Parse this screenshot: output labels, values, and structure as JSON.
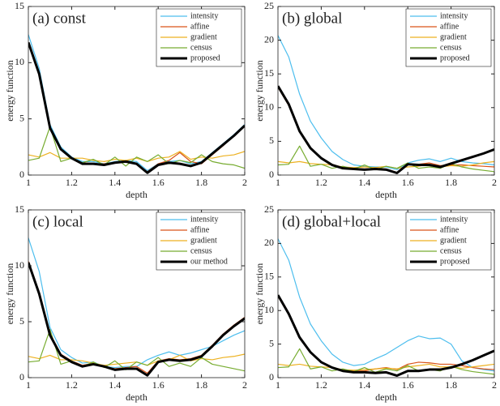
{
  "chart_data": [
    {
      "type": "line",
      "title": "(a) const",
      "xlabel": "depth",
      "ylabel": "energy function",
      "x": [
        1,
        1.05,
        1.1,
        1.15,
        1.2,
        1.25,
        1.3,
        1.35,
        1.4,
        1.45,
        1.5,
        1.55,
        1.6,
        1.65,
        1.7,
        1.75,
        1.8,
        1.85,
        1.9,
        1.95,
        2
      ],
      "xlim": [
        1,
        2
      ],
      "xticks": [
        1,
        1.2,
        1.4,
        1.6,
        1.8,
        2
      ],
      "ylim": [
        0,
        15
      ],
      "yticks": [
        0,
        5,
        10,
        15
      ],
      "legend": "upper right",
      "series": [
        {
          "name": "intensity",
          "color": "#4dbeee",
          "linewidth": 1.2,
          "values": [
            12.5,
            9.5,
            4.5,
            2.5,
            1.6,
            1.2,
            1.2,
            1.0,
            1.2,
            1.3,
            1.2,
            0.4,
            1.0,
            1.2,
            1.3,
            1.0,
            1.2,
            2.0,
            2.8,
            3.6,
            4.5
          ]
        },
        {
          "name": "affine",
          "color": "#d95319",
          "linewidth": 1.2,
          "values": [
            11.7,
            8.9,
            4.1,
            2.3,
            1.5,
            1.1,
            1.0,
            1.0,
            1.1,
            1.3,
            1.0,
            0.3,
            1.0,
            1.3,
            2.0,
            1.2,
            1.0,
            1.8,
            2.6,
            3.5,
            4.3
          ]
        },
        {
          "name": "gradient",
          "color": "#edb120",
          "linewidth": 1.2,
          "values": [
            1.8,
            1.6,
            2.0,
            1.5,
            1.5,
            1.5,
            1.3,
            1.2,
            1.4,
            1.3,
            1.5,
            1.2,
            1.5,
            1.6,
            2.1,
            1.4,
            1.6,
            1.5,
            1.7,
            1.8,
            2.1
          ]
        },
        {
          "name": "census",
          "color": "#77ac30",
          "linewidth": 1.2,
          "values": [
            1.3,
            1.5,
            4.3,
            1.2,
            1.5,
            1.1,
            1.4,
            0.9,
            1.6,
            0.8,
            1.6,
            1.2,
            1.8,
            1.0,
            1.3,
            1.1,
            1.8,
            1.2,
            1.0,
            0.9,
            0.6
          ]
        },
        {
          "name": "proposed",
          "color": "#000000",
          "linewidth": 3,
          "values": [
            11.8,
            9.0,
            4.2,
            2.3,
            1.5,
            1.0,
            1.0,
            0.9,
            1.1,
            1.2,
            1.0,
            0.2,
            0.9,
            1.1,
            1.0,
            0.8,
            1.1,
            1.9,
            2.7,
            3.5,
            4.4
          ]
        }
      ]
    },
    {
      "type": "line",
      "title": "(b) global",
      "xlabel": "depth",
      "ylabel": "energy function",
      "x": [
        1,
        1.05,
        1.1,
        1.15,
        1.2,
        1.25,
        1.3,
        1.35,
        1.4,
        1.45,
        1.5,
        1.55,
        1.6,
        1.65,
        1.7,
        1.75,
        1.8,
        1.85,
        1.9,
        1.95,
        2
      ],
      "xlim": [
        1,
        2
      ],
      "xticks": [
        1,
        1.2,
        1.4,
        1.6,
        1.8,
        2
      ],
      "ylim": [
        0,
        25
      ],
      "yticks": [
        0,
        5,
        10,
        15,
        20,
        25
      ],
      "legend": "upper right",
      "series": [
        {
          "name": "intensity",
          "color": "#4dbeee",
          "linewidth": 1.2,
          "values": [
            20.7,
            17.5,
            12,
            8,
            5.5,
            3.5,
            2.3,
            1.5,
            1.3,
            1.2,
            1.2,
            0.8,
            1.8,
            2.2,
            2.4,
            2.0,
            2.5,
            2.0,
            1.8,
            1.7,
            1.5
          ]
        },
        {
          "name": "affine",
          "color": "#d95319",
          "linewidth": 1.2,
          "values": [
            13.0,
            10.3,
            6.4,
            4.0,
            2.5,
            1.6,
            1.1,
            1.0,
            0.9,
            1.0,
            0.9,
            0.4,
            1.5,
            1.6,
            1.8,
            1.4,
            1.5,
            1.5,
            1.4,
            1.3,
            1.2
          ]
        },
        {
          "name": "gradient",
          "color": "#edb120",
          "linewidth": 1.2,
          "values": [
            2.0,
            1.8,
            2.0,
            1.7,
            1.6,
            1.5,
            1.2,
            1.1,
            1.2,
            1.1,
            1.3,
            1.0,
            1.2,
            1.3,
            1.6,
            1.2,
            1.4,
            1.3,
            1.5,
            1.8,
            2.0
          ]
        },
        {
          "name": "census",
          "color": "#77ac30",
          "linewidth": 1.2,
          "values": [
            1.5,
            1.6,
            4.3,
            1.3,
            1.6,
            1.0,
            1.3,
            0.9,
            1.5,
            0.8,
            1.3,
            1.0,
            1.8,
            1.0,
            1.2,
            1.0,
            1.7,
            1.2,
            0.9,
            0.7,
            0.5
          ]
        },
        {
          "name": "proposed",
          "color": "#000000",
          "linewidth": 3,
          "values": [
            13.2,
            10.5,
            6.5,
            4.0,
            2.5,
            1.5,
            1.0,
            0.9,
            0.8,
            0.9,
            0.8,
            0.3,
            1.6,
            1.5,
            1.5,
            1.2,
            1.7,
            2.2,
            2.7,
            3.2,
            3.8
          ]
        }
      ]
    },
    {
      "type": "line",
      "title": "(c) local",
      "xlabel": "depth",
      "ylabel": "energy function",
      "x": [
        1,
        1.05,
        1.1,
        1.15,
        1.2,
        1.25,
        1.3,
        1.35,
        1.4,
        1.45,
        1.5,
        1.55,
        1.6,
        1.65,
        1.7,
        1.75,
        1.8,
        1.85,
        1.9,
        1.95,
        2
      ],
      "xlim": [
        1,
        2
      ],
      "xticks": [
        1,
        1.2,
        1.4,
        1.6,
        1.8,
        2
      ],
      "ylim": [
        0,
        15
      ],
      "yticks": [
        0,
        5,
        10,
        15
      ],
      "legend": "upper right",
      "series": [
        {
          "name": "intensity",
          "color": "#4dbeee",
          "linewidth": 1.2,
          "values": [
            12.5,
            9.5,
            4.5,
            2.5,
            1.8,
            1.3,
            1.4,
            1.0,
            0.9,
            1.0,
            1.0,
            1.6,
            2.0,
            2.3,
            2.0,
            2.2,
            2.5,
            2.8,
            3.3,
            3.8,
            4.2
          ]
        },
        {
          "name": "affine",
          "color": "#d95319",
          "linewidth": 1.2,
          "values": [
            10.4,
            7.6,
            3.9,
            2.1,
            1.5,
            1.1,
            1.3,
            1.0,
            0.8,
            0.9,
            1.0,
            0.4,
            1.5,
            1.7,
            1.6,
            1.7,
            2.0,
            2.9,
            3.9,
            4.7,
            5.4
          ]
        },
        {
          "name": "gradient",
          "color": "#edb120",
          "linewidth": 1.2,
          "values": [
            1.9,
            1.7,
            2.0,
            1.6,
            1.6,
            1.5,
            1.3,
            1.1,
            1.2,
            1.3,
            1.4,
            1.1,
            1.5,
            1.6,
            2.0,
            1.5,
            1.7,
            1.6,
            1.8,
            1.9,
            2.1
          ]
        },
        {
          "name": "census",
          "color": "#77ac30",
          "linewidth": 1.2,
          "values": [
            1.4,
            1.5,
            4.3,
            1.2,
            1.5,
            1.0,
            1.4,
            0.9,
            1.5,
            0.7,
            1.4,
            1.1,
            1.8,
            1.0,
            1.3,
            1.0,
            1.8,
            1.2,
            1.0,
            0.8,
            0.6
          ]
        },
        {
          "name": "our method",
          "color": "#000000",
          "linewidth": 3,
          "values": [
            10.3,
            7.5,
            3.8,
            2.0,
            1.4,
            1.0,
            1.2,
            1.0,
            0.7,
            0.8,
            0.8,
            0.2,
            1.4,
            1.6,
            1.5,
            1.6,
            1.9,
            2.8,
            3.8,
            4.6,
            5.3
          ]
        }
      ]
    },
    {
      "type": "line",
      "title": "(d) global+local",
      "xlabel": "depth",
      "ylabel": "energy function",
      "x": [
        1,
        1.05,
        1.1,
        1.15,
        1.2,
        1.25,
        1.3,
        1.35,
        1.4,
        1.45,
        1.5,
        1.55,
        1.6,
        1.65,
        1.7,
        1.75,
        1.8,
        1.85,
        1.9,
        1.95,
        2
      ],
      "xlim": [
        1,
        2
      ],
      "xticks": [
        1,
        1.2,
        1.4,
        1.6,
        1.8,
        2
      ],
      "ylim": [
        0,
        25
      ],
      "yticks": [
        0,
        5,
        10,
        15,
        20,
        25
      ],
      "legend": "upper right",
      "series": [
        {
          "name": "intensity",
          "color": "#4dbeee",
          "linewidth": 1.2,
          "values": [
            20.7,
            17.5,
            12,
            8,
            5.5,
            3.5,
            2.3,
            1.8,
            2.0,
            2.8,
            3.5,
            4.5,
            5.5,
            6.2,
            5.8,
            5.9,
            5.0,
            2.5,
            1.5,
            1.2,
            1.0
          ]
        },
        {
          "name": "affine",
          "color": "#d95319",
          "linewidth": 1.2,
          "values": [
            12.1,
            9.4,
            5.9,
            3.8,
            2.3,
            1.5,
            1.1,
            1.0,
            1.0,
            1.3,
            1.5,
            1.2,
            2.0,
            2.3,
            2.2,
            2.0,
            2.0,
            1.8,
            1.5,
            1.3,
            1.2
          ]
        },
        {
          "name": "gradient",
          "color": "#edb120",
          "linewidth": 1.2,
          "values": [
            2.0,
            1.8,
            2.0,
            1.7,
            1.6,
            1.5,
            1.2,
            1.1,
            1.2,
            1.3,
            1.4,
            1.3,
            1.6,
            1.8,
            2.0,
            1.6,
            1.6,
            1.4,
            1.6,
            1.8,
            2.0
          ]
        },
        {
          "name": "census",
          "color": "#77ac30",
          "linewidth": 1.2,
          "values": [
            1.5,
            1.6,
            4.3,
            1.3,
            1.6,
            1.0,
            1.3,
            0.9,
            1.5,
            0.8,
            1.3,
            1.0,
            1.8,
            1.0,
            1.2,
            1.0,
            1.7,
            1.2,
            0.9,
            0.7,
            0.5
          ]
        },
        {
          "name": "proposed",
          "color": "#000000",
          "linewidth": 3,
          "values": [
            12.3,
            9.5,
            6.0,
            3.8,
            2.3,
            1.5,
            1.0,
            0.8,
            0.8,
            0.7,
            0.8,
            0.3,
            1.0,
            1.0,
            1.2,
            1.2,
            1.5,
            2.0,
            2.6,
            3.3,
            4.0
          ]
        }
      ]
    }
  ]
}
